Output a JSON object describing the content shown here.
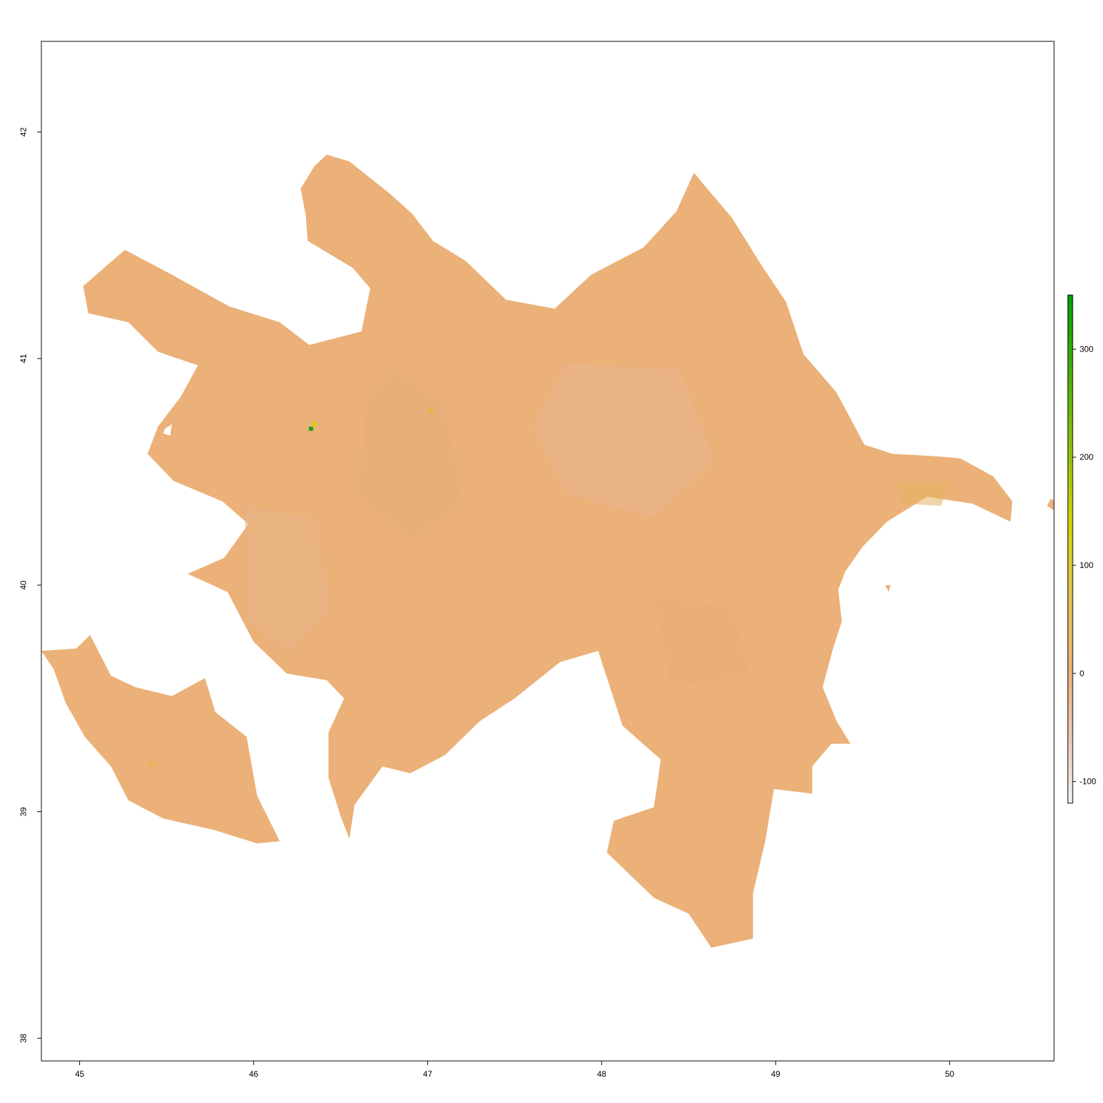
{
  "map": {
    "projection": "longitude / latitude",
    "x_axis": {
      "range": [
        44.78,
        50.6
      ],
      "ticks": [
        45,
        46,
        47,
        48,
        49,
        50
      ],
      "tick_labels": [
        "45",
        "46",
        "47",
        "48",
        "49",
        "50"
      ]
    },
    "y_axis": {
      "range": [
        37.9,
        42.4
      ],
      "ticks": [
        38,
        39,
        40,
        41,
        42
      ],
      "tick_labels": [
        "38",
        "39",
        "40",
        "41",
        "42"
      ]
    },
    "fill_color": "#ebb178",
    "regions": [
      {
        "id": "mainland",
        "outline_lonlat": [
          [
            46.42,
            41.9
          ],
          [
            46.55,
            41.87
          ],
          [
            46.78,
            41.73
          ],
          [
            46.91,
            41.64
          ],
          [
            47.03,
            41.52
          ],
          [
            47.22,
            41.43
          ],
          [
            47.45,
            41.26
          ],
          [
            47.73,
            41.22
          ],
          [
            47.94,
            41.37
          ],
          [
            48.24,
            41.49
          ],
          [
            48.43,
            41.65
          ],
          [
            48.53,
            41.82
          ],
          [
            48.75,
            41.62
          ],
          [
            48.92,
            41.41
          ],
          [
            49.06,
            41.25
          ],
          [
            49.16,
            41.02
          ],
          [
            49.35,
            40.85
          ],
          [
            49.51,
            40.62
          ],
          [
            49.67,
            40.58
          ],
          [
            49.9,
            40.57
          ],
          [
            50.06,
            40.56
          ],
          [
            50.25,
            40.48
          ],
          [
            50.36,
            40.37
          ],
          [
            50.35,
            40.28
          ],
          [
            50.13,
            40.36
          ],
          [
            49.87,
            40.39
          ],
          [
            49.64,
            40.28
          ],
          [
            49.5,
            40.17
          ],
          [
            49.4,
            40.06
          ],
          [
            49.36,
            39.98
          ],
          [
            49.38,
            39.84
          ],
          [
            49.33,
            39.72
          ],
          [
            49.27,
            39.55
          ],
          [
            49.35,
            39.4
          ],
          [
            49.43,
            39.3
          ],
          [
            49.32,
            39.3
          ],
          [
            49.21,
            39.2
          ],
          [
            49.21,
            39.08
          ],
          [
            48.99,
            39.1
          ],
          [
            48.94,
            38.87
          ],
          [
            48.87,
            38.64
          ],
          [
            48.87,
            38.44
          ],
          [
            48.63,
            38.4
          ],
          [
            48.5,
            38.55
          ],
          [
            48.3,
            38.62
          ],
          [
            48.03,
            38.82
          ],
          [
            48.07,
            38.96
          ],
          [
            48.3,
            39.02
          ],
          [
            48.34,
            39.23
          ],
          [
            48.12,
            39.38
          ],
          [
            47.98,
            39.71
          ],
          [
            47.76,
            39.66
          ],
          [
            47.5,
            39.5
          ],
          [
            47.3,
            39.4
          ],
          [
            47.1,
            39.25
          ],
          [
            46.9,
            39.17
          ],
          [
            46.74,
            39.2
          ],
          [
            46.58,
            39.03
          ],
          [
            46.55,
            38.88
          ],
          [
            46.5,
            38.98
          ],
          [
            46.43,
            39.15
          ],
          [
            46.43,
            39.35
          ],
          [
            46.52,
            39.5
          ],
          [
            46.42,
            39.58
          ],
          [
            46.19,
            39.61
          ],
          [
            46.0,
            39.75
          ],
          [
            45.85,
            39.97
          ],
          [
            45.62,
            40.05
          ],
          [
            45.83,
            40.12
          ],
          [
            45.97,
            40.27
          ],
          [
            45.82,
            40.37
          ],
          [
            45.54,
            40.46
          ],
          [
            45.39,
            40.58
          ],
          [
            45.45,
            40.7
          ],
          [
            45.58,
            40.83
          ],
          [
            45.68,
            40.97
          ],
          [
            45.45,
            41.03
          ],
          [
            45.28,
            41.16
          ],
          [
            45.05,
            41.2
          ],
          [
            45.02,
            41.32
          ],
          [
            45.26,
            41.48
          ],
          [
            45.53,
            41.37
          ],
          [
            45.86,
            41.23
          ],
          [
            46.15,
            41.16
          ],
          [
            46.32,
            41.06
          ],
          [
            46.62,
            41.12
          ],
          [
            46.67,
            41.31
          ],
          [
            46.57,
            41.4
          ],
          [
            46.31,
            41.52
          ],
          [
            46.3,
            41.63
          ],
          [
            46.27,
            41.75
          ],
          [
            46.35,
            41.85
          ]
        ],
        "holes_lonlat": [
          [
            [
              45.49,
              40.69
            ],
            [
              45.53,
              40.71
            ],
            [
              45.52,
              40.66
            ],
            [
              45.48,
              40.67
            ]
          ]
        ]
      },
      {
        "id": "nakhchivan",
        "outline_lonlat": [
          [
            44.78,
            39.71
          ],
          [
            44.98,
            39.72
          ],
          [
            45.06,
            39.78
          ],
          [
            45.18,
            39.6
          ],
          [
            45.32,
            39.55
          ],
          [
            45.53,
            39.51
          ],
          [
            45.72,
            39.59
          ],
          [
            45.78,
            39.44
          ],
          [
            45.96,
            39.33
          ],
          [
            46.02,
            39.07
          ],
          [
            46.15,
            38.87
          ],
          [
            46.02,
            38.86
          ],
          [
            45.77,
            38.92
          ],
          [
            45.48,
            38.97
          ],
          [
            45.28,
            39.05
          ],
          [
            45.18,
            39.2
          ],
          [
            45.03,
            39.33
          ],
          [
            44.92,
            39.48
          ],
          [
            44.85,
            39.63
          ]
        ],
        "holes_lonlat": []
      }
    ],
    "patches": [
      {
        "shape": [
          [
            46.8,
            40.95
          ],
          [
            47.1,
            40.8
          ],
          [
            47.2,
            40.35
          ],
          [
            46.9,
            40.2
          ],
          [
            46.6,
            40.4
          ],
          [
            46.65,
            40.8
          ]
        ],
        "color": "#e8ad78"
      },
      {
        "shape": [
          [
            47.8,
            40.98
          ],
          [
            48.45,
            40.95
          ],
          [
            48.65,
            40.55
          ],
          [
            48.3,
            40.3
          ],
          [
            47.8,
            40.4
          ],
          [
            47.6,
            40.7
          ]
        ],
        "color": "#e9b48c"
      },
      {
        "shape": [
          [
            45.95,
            40.35
          ],
          [
            46.35,
            40.3
          ],
          [
            46.45,
            39.9
          ],
          [
            46.2,
            39.7
          ],
          [
            45.95,
            39.85
          ]
        ],
        "color": "#e8b289"
      },
      {
        "shape": [
          [
            48.3,
            39.95
          ],
          [
            48.75,
            39.9
          ],
          [
            48.85,
            39.6
          ],
          [
            48.4,
            39.55
          ]
        ],
        "color": "#e8ad74"
      },
      {
        "shape": [
          [
            49.7,
            40.45
          ],
          [
            50.0,
            40.45
          ],
          [
            49.95,
            40.35
          ],
          [
            49.72,
            40.36
          ]
        ],
        "color": "#e6b162"
      }
    ],
    "hotspots": [
      {
        "lon": 46.33,
        "lat": 40.69,
        "color": "#1fa01a"
      },
      {
        "lon": 46.35,
        "lat": 40.71,
        "color": "#c8d400"
      },
      {
        "lon": 47.02,
        "lat": 40.77,
        "color": "#d9be2e"
      },
      {
        "lon": 45.41,
        "lat": 39.21,
        "color": "#e6b840"
      }
    ],
    "islands_lonlat": [
      [
        [
          50.58,
          40.38
        ],
        [
          50.62,
          40.37
        ],
        [
          50.6,
          40.33
        ],
        [
          50.56,
          40.35
        ]
      ],
      [
        [
          49.63,
          40.0
        ],
        [
          49.66,
          40.0
        ],
        [
          49.65,
          39.97
        ]
      ]
    ]
  },
  "legend": {
    "type": "continuous colorbar",
    "placement": "right",
    "range": [
      -120,
      350
    ],
    "ticks": [
      -100,
      0,
      100,
      200,
      300
    ],
    "tick_labels": [
      "-100",
      "0",
      "100",
      "200",
      "300"
    ],
    "gradient": [
      {
        "value": -120,
        "color": "#f2f2f2"
      },
      {
        "value": -60,
        "color": "#ecc9b8"
      },
      {
        "value": 0,
        "color": "#ebb178"
      },
      {
        "value": 80,
        "color": "#e2c64a"
      },
      {
        "value": 140,
        "color": "#d4d400"
      },
      {
        "value": 220,
        "color": "#82be10"
      },
      {
        "value": 350,
        "color": "#00a000"
      }
    ]
  }
}
